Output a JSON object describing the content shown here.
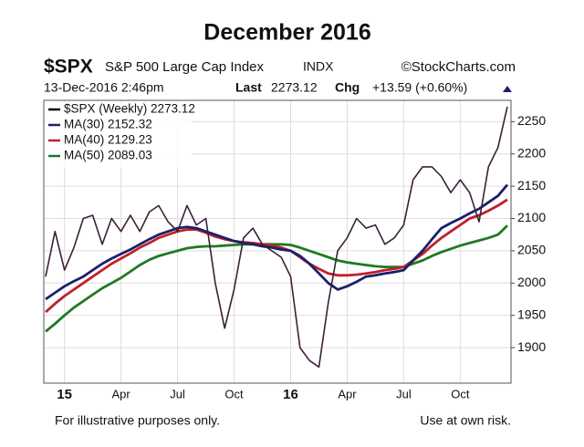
{
  "chart_data": {
    "type": "line",
    "title": "December 2016",
    "symbol": "$SPX",
    "description": "S&P 500 Large Cap Index",
    "exchange": "INDX",
    "source": "©StockCharts.com",
    "timestamp": "13-Dec-2016 2:46pm",
    "last_label": "Last",
    "last": 2273.12,
    "chg_label": "Chg",
    "chg": "+13.59 (+0.60%)",
    "footer_left": "For illustrative purposes only.",
    "footer_right": "Use at own risk.",
    "categories": [
      null,
      null,
      "15",
      null,
      null,
      null,
      null,
      null,
      "Apr",
      null,
      null,
      null,
      null,
      null,
      "Jul",
      null,
      null,
      null,
      null,
      null,
      "Oct",
      null,
      null,
      null,
      null,
      null,
      "16",
      null,
      null,
      null,
      null,
      null,
      "Apr",
      null,
      null,
      null,
      null,
      null,
      "Jul",
      null,
      null,
      null,
      null,
      null,
      "Oct",
      null,
      null,
      null,
      null,
      null
    ],
    "series": [
      {
        "name": "$SPX (Weekly) 2273.12",
        "color": "#3b1f3a",
        "values": [
          2010,
          2080,
          2020,
          2055,
          2100,
          2105,
          2060,
          2100,
          2080,
          2105,
          2080,
          2110,
          2120,
          2095,
          2080,
          2120,
          2090,
          2100,
          2000,
          1930,
          1990,
          2070,
          2085,
          2060,
          2050,
          2040,
          2010,
          1900,
          1880,
          1870,
          1970,
          2050,
          2070,
          2100,
          2085,
          2090,
          2060,
          2070,
          2090,
          2160,
          2180,
          2180,
          2165,
          2140,
          2160,
          2140,
          2095,
          2180,
          2210,
          2273.12
        ]
      },
      {
        "name": "MA(30) 2152.32",
        "color": "#1c1f6b",
        "values": [
          1975,
          1985,
          1995,
          2003,
          2010,
          2020,
          2030,
          2038,
          2045,
          2052,
          2060,
          2068,
          2075,
          2080,
          2085,
          2087,
          2085,
          2080,
          2075,
          2070,
          2065,
          2062,
          2060,
          2057,
          2055,
          2052,
          2050,
          2042,
          2030,
          2015,
          2000,
          1990,
          1995,
          2002,
          2010,
          2012,
          2015,
          2017,
          2020,
          2035,
          2050,
          2068,
          2085,
          2093,
          2100,
          2108,
          2115,
          2125,
          2135,
          2152.32
        ]
      },
      {
        "name": "MA(40) 2129.23",
        "color": "#c0202a",
        "values": [
          1955,
          1968,
          1980,
          1990,
          2000,
          2010,
          2020,
          2030,
          2038,
          2046,
          2055,
          2062,
          2070,
          2075,
          2080,
          2083,
          2083,
          2078,
          2072,
          2068,
          2065,
          2063,
          2062,
          2060,
          2058,
          2055,
          2050,
          2040,
          2030,
          2022,
          2015,
          2012,
          2012,
          2013,
          2015,
          2017,
          2020,
          2022,
          2025,
          2035,
          2045,
          2058,
          2070,
          2080,
          2090,
          2100,
          2105,
          2112,
          2120,
          2129.23
        ]
      },
      {
        "name": "MA(50) 2089.03",
        "color": "#1f7a22",
        "values": [
          1925,
          1937,
          1950,
          1962,
          1972,
          1982,
          1992,
          2000,
          2008,
          2018,
          2028,
          2036,
          2042,
          2046,
          2050,
          2054,
          2056,
          2057,
          2057,
          2058,
          2059,
          2060,
          2060,
          2060,
          2060,
          2060,
          2059,
          2055,
          2050,
          2045,
          2040,
          2035,
          2032,
          2030,
          2028,
          2026,
          2025,
          2025,
          2025,
          2030,
          2035,
          2042,
          2048,
          2053,
          2058,
          2062,
          2066,
          2070,
          2075,
          2089.03
        ]
      }
    ],
    "ylim": [
      1845,
      2283
    ],
    "yticks": [
      1900,
      1950,
      2000,
      2050,
      2100,
      2150,
      2200,
      2250
    ],
    "grid": true
  }
}
